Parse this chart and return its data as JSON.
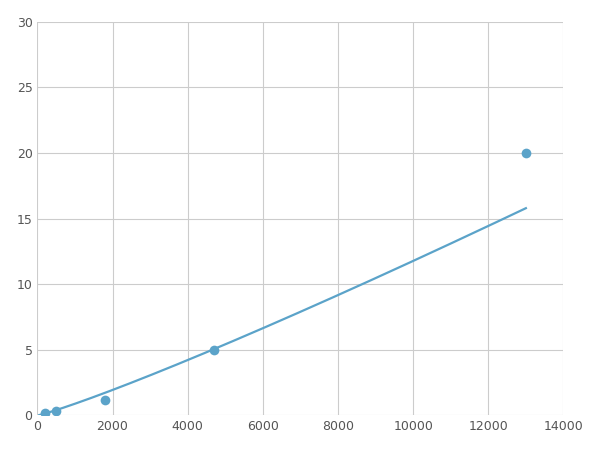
{
  "x_data": [
    200,
    500,
    1800,
    4700,
    13000
  ],
  "y_data": [
    0.2,
    0.35,
    1.2,
    5.0,
    20.0
  ],
  "line_color": "#5ba3c9",
  "marker_color": "#5ba3c9",
  "marker_size": 7,
  "line_width": 1.6,
  "xlim": [
    0,
    14000
  ],
  "ylim": [
    0,
    30
  ],
  "xticks": [
    0,
    2000,
    4000,
    6000,
    8000,
    10000,
    12000,
    14000
  ],
  "yticks": [
    0,
    5,
    10,
    15,
    20,
    25,
    30
  ],
  "grid_color": "#cccccc",
  "background_color": "#ffffff",
  "figure_bg": "#ffffff",
  "tick_fontsize": 9,
  "tick_color": "#555555"
}
